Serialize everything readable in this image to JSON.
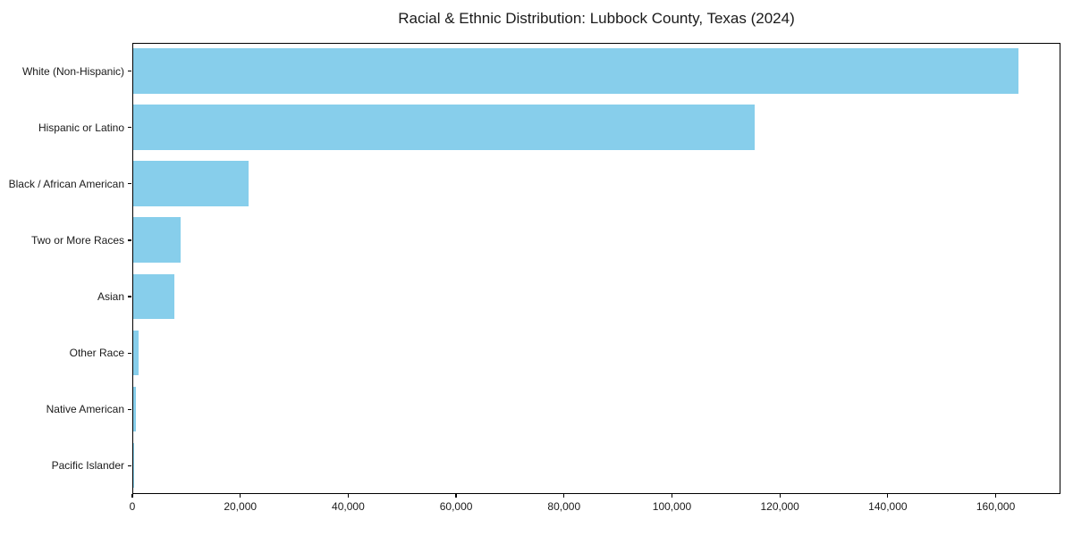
{
  "title": "Racial & Ethnic Distribution: Lubbock County, Texas (2024)",
  "chart_data": {
    "type": "bar",
    "orientation": "horizontal",
    "title": "Racial & Ethnic Distribution: Lubbock County, Texas (2024)",
    "xlabel": "",
    "ylabel": "",
    "categories": [
      "White (Non-Hispanic)",
      "Hispanic or Latino",
      "Black / African American",
      "Two or More Races",
      "Asian",
      "Other Race",
      "Native American",
      "Pacific Islander"
    ],
    "values": [
      164000,
      115200,
      21300,
      8700,
      7600,
      1000,
      500,
      100
    ],
    "xlim": [
      0,
      172000
    ],
    "xticks": [
      0,
      20000,
      40000,
      60000,
      80000,
      100000,
      120000,
      140000,
      160000
    ],
    "xtick_labels": [
      "0",
      "20,000",
      "40,000",
      "60,000",
      "80,000",
      "100,000",
      "120,000",
      "140,000",
      "160,000"
    ],
    "bar_color": "#87CEEB",
    "grid": false,
    "legend_position": "none"
  }
}
